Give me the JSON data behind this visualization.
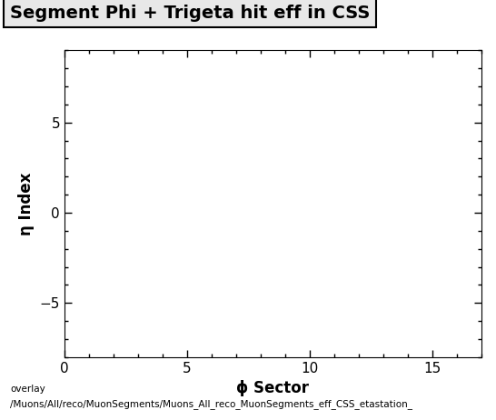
{
  "title": "Segment Phi + Trigeta hit eff in CSS",
  "xlabel": "ϕ Sector",
  "ylabel": "η Index",
  "xlim": [
    0,
    17
  ],
  "ylim": [
    -8,
    9
  ],
  "xticks": [
    0,
    5,
    10,
    15
  ],
  "yticks": [
    -5,
    0,
    5
  ],
  "background_color": "#ffffff",
  "plot_bg_color": "#ffffff",
  "footer_line1": "overlay",
  "footer_line2": "/Muons/All/reco/MuonSegments/Muons_All_reco_MuonSegments_eff_CSS_etastation_",
  "title_fontsize": 14,
  "axis_label_fontsize": 12,
  "tick_fontsize": 11,
  "footer_fontsize": 7.5
}
